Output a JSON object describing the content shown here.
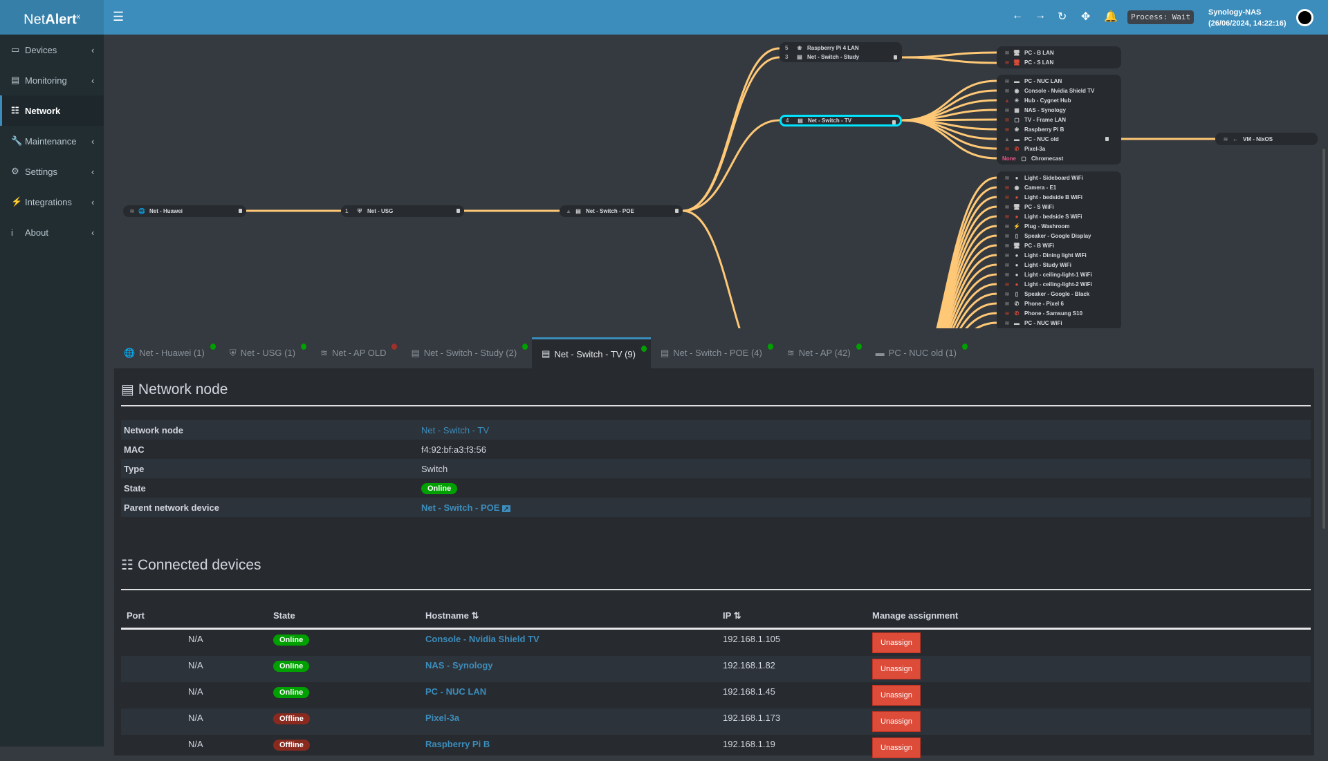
{
  "app": {
    "logo_pre": "Net",
    "logo_main": "Alert",
    "logo_sup": "x"
  },
  "header": {
    "process": "Process: Wait",
    "server": "Synology-NAS",
    "datetime": "(26/06/2024, 14:22:16)",
    "icons": [
      "arrow-left",
      "arrow-right",
      "refresh",
      "move",
      "bell"
    ]
  },
  "sidebar": {
    "items": [
      {
        "label": "Devices",
        "icon": "laptop",
        "active": false
      },
      {
        "label": "Monitoring",
        "icon": "chart",
        "active": false
      },
      {
        "label": "Network",
        "icon": "sitemap",
        "active": true
      },
      {
        "label": "Maintenance",
        "icon": "wrench",
        "active": false
      },
      {
        "label": "Settings",
        "icon": "gear",
        "active": false
      },
      {
        "label": "Integrations",
        "icon": "plug",
        "active": false
      },
      {
        "label": "About",
        "icon": "info",
        "active": false
      }
    ]
  },
  "tree": {
    "chain": [
      {
        "name": "Net - Huawei",
        "icon": "globe",
        "conn": "wifi"
      },
      {
        "name": "Net - USG",
        "icon": "shield",
        "port": "1"
      },
      {
        "name": "Net - Switch - POE",
        "icon": "switch",
        "conn": "ethernet"
      }
    ],
    "poe_children": [
      {
        "name": "Raspberry Pi 4 LAN",
        "icon": "raspberry",
        "port": "5"
      },
      {
        "name": "Net - Switch - Study",
        "icon": "switch",
        "port": "3"
      }
    ],
    "selected": {
      "name": "Net - Switch - TV",
      "icon": "switch",
      "port": "4"
    },
    "study_children": [
      {
        "name": "PC - B LAN",
        "icon": "desktop",
        "status": "online"
      },
      {
        "name": "PC - S LAN",
        "icon": "desktop",
        "status": "offline"
      }
    ],
    "tv_children": [
      {
        "name": "PC - NUC LAN",
        "icon": "nuc",
        "status": "online",
        "conn": "wifi"
      },
      {
        "name": "Console - Nvidia Shield TV",
        "icon": "gamepad",
        "status": "online",
        "conn": "wifi"
      },
      {
        "name": "Hub - Cygnet Hub",
        "icon": "hub",
        "status": "offline",
        "conn": "ethernet"
      },
      {
        "name": "NAS - Synology",
        "icon": "nas",
        "status": "online",
        "conn": "wifi"
      },
      {
        "name": "TV - Frame LAN",
        "icon": "tv",
        "status": "offline",
        "conn": "wifi"
      },
      {
        "name": "Raspberry Pi B",
        "icon": "raspberry",
        "status": "offline",
        "conn": "wifi"
      },
      {
        "name": "PC - NUC old",
        "icon": "nuc",
        "status": "online",
        "conn": "ethernet"
      },
      {
        "name": "Pixel-3a",
        "icon": "phone",
        "status": "offline",
        "conn": "wifi"
      },
      {
        "name": "Chromecast",
        "icon": "tv",
        "status": "offline",
        "port": "None"
      }
    ],
    "ap_children": [
      {
        "name": "Light - Sideboard WiFi",
        "icon": "bulb",
        "status": "online"
      },
      {
        "name": "Camera - E1",
        "icon": "camera",
        "status": "offline"
      },
      {
        "name": "Light - bedside B WiFi",
        "icon": "bulb",
        "status": "offline"
      },
      {
        "name": "PC - S WiFi",
        "icon": "desktop",
        "status": "online"
      },
      {
        "name": "Light - bedside S WiFi",
        "icon": "bulb",
        "status": "offline"
      },
      {
        "name": "Plug - Washroom",
        "icon": "plug",
        "status": "online"
      },
      {
        "name": "Speaker - Google Display",
        "icon": "speaker",
        "status": "online"
      },
      {
        "name": "PC - B WiFi",
        "icon": "desktop",
        "status": "online"
      },
      {
        "name": "Light - Dining light WiFi",
        "icon": "bulb",
        "status": "online"
      },
      {
        "name": "Light - Study WiFi",
        "icon": "bulb",
        "status": "online"
      },
      {
        "name": "Light - ceiling-light-1 WiFi",
        "icon": "bulb",
        "status": "online"
      },
      {
        "name": "Light - ceiling-light-2 WiFi",
        "icon": "bulb",
        "status": "offline"
      },
      {
        "name": "Speaker - Google - Black",
        "icon": "speaker",
        "status": "online"
      },
      {
        "name": "Phone - Pixel 6",
        "icon": "phone",
        "status": "online"
      },
      {
        "name": "Phone - Samsung S10",
        "icon": "phone",
        "status": "offline"
      },
      {
        "name": "PC - NUC WiFi",
        "icon": "nuc",
        "status": "online"
      }
    ],
    "nuc_old_children": [
      {
        "name": "VM - NixOS",
        "icon": "vm",
        "status": "online"
      }
    ],
    "colors": {
      "link": "#ffc876",
      "selected": "#00e5ff",
      "offline": "#dd4b39"
    }
  },
  "tabs": [
    {
      "label": "Net - Huawei (1)",
      "icon": "globe",
      "status": "online"
    },
    {
      "label": "Net - USG (1)",
      "icon": "shield",
      "status": "online"
    },
    {
      "label": "Net - AP OLD",
      "icon": "wifi",
      "status": "offline"
    },
    {
      "label": "Net - Switch - Study (2)",
      "icon": "switch",
      "status": "online"
    },
    {
      "label": "Net - Switch - TV (9)",
      "icon": "switch",
      "status": "online",
      "active": true
    },
    {
      "label": "Net - Switch - POE (4)",
      "icon": "switch",
      "status": "online"
    },
    {
      "label": "Net - AP (42)",
      "icon": "wifi",
      "status": "online"
    },
    {
      "label": "PC - NUC old (1)",
      "icon": "nuc",
      "status": "online"
    }
  ],
  "node": {
    "title": "Network node",
    "rows": [
      {
        "label": "Network node",
        "value": "Net - Switch - TV",
        "kind": "link"
      },
      {
        "label": "MAC",
        "value": "f4:92:bf:a3:f3:56"
      },
      {
        "label": "Type",
        "value": "Switch"
      },
      {
        "label": "State",
        "value": "Online",
        "kind": "badge"
      },
      {
        "label": "Parent network device",
        "value": "Net - Switch - POE",
        "kind": "link-ext"
      }
    ]
  },
  "connected": {
    "title": "Connected devices",
    "headers": {
      "port": "Port",
      "state": "State",
      "hostname": "Hostname",
      "ip": "IP",
      "manage": "Manage assignment"
    },
    "rows": [
      {
        "port": "N/A",
        "state": "Online",
        "hostname": "Console - Nvidia Shield TV",
        "ip": "192.168.1.105",
        "action": "Unassign"
      },
      {
        "port": "N/A",
        "state": "Online",
        "hostname": "NAS - Synology",
        "ip": "192.168.1.82",
        "action": "Unassign"
      },
      {
        "port": "N/A",
        "state": "Online",
        "hostname": "PC - NUC LAN",
        "ip": "192.168.1.45",
        "action": "Unassign"
      },
      {
        "port": "N/A",
        "state": "Offline",
        "hostname": "Pixel-3a",
        "ip": "192.168.1.173",
        "action": "Unassign"
      },
      {
        "port": "N/A",
        "state": "Offline",
        "hostname": "Raspberry Pi B",
        "ip": "192.168.1.19",
        "action": "Unassign"
      }
    ]
  },
  "status_colors": {
    "online": "#00a000",
    "offline": "#a0302a"
  }
}
